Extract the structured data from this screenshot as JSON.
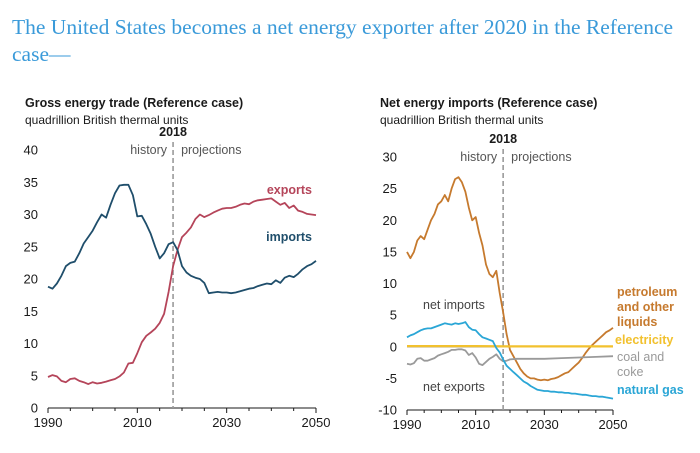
{
  "headline": "The United States becomes a net energy exporter after 2020 in the Reference case—",
  "chart_data": [
    {
      "type": "line",
      "title": "Gross energy trade (Reference case)",
      "subtitle": "quadrillion British thermal units",
      "xlim": [
        1990,
        2050
      ],
      "ylim": [
        0,
        40
      ],
      "xticks": [
        1990,
        2010,
        2030,
        2050
      ],
      "yticks": [
        0,
        5,
        10,
        15,
        20,
        25,
        30,
        35,
        40
      ],
      "divider": {
        "x": 2018,
        "label": "2018",
        "left_label": "history",
        "right_label": "projections"
      },
      "series": [
        {
          "name": "exports",
          "color": "#b5455a",
          "x": [
            1990,
            1991,
            1992,
            1993,
            1994,
            1995,
            1996,
            1997,
            1998,
            1999,
            2000,
            2001,
            2002,
            2003,
            2004,
            2005,
            2006,
            2007,
            2008,
            2009,
            2010,
            2011,
            2012,
            2013,
            2014,
            2015,
            2016,
            2017,
            2018,
            2019,
            2020,
            2021,
            2022,
            2023,
            2024,
            2025,
            2026,
            2027,
            2028,
            2029,
            2030,
            2031,
            2032,
            2033,
            2034,
            2035,
            2036,
            2037,
            2038,
            2039,
            2040,
            2041,
            2042,
            2043,
            2044,
            2045,
            2046,
            2047,
            2048,
            2049,
            2050
          ],
          "y": [
            4.8,
            5.1,
            4.9,
            4.2,
            4.0,
            4.5,
            4.6,
            4.2,
            4.0,
            3.7,
            4.0,
            3.8,
            3.9,
            4.1,
            4.3,
            4.5,
            4.9,
            5.5,
            6.9,
            7.0,
            8.5,
            10.2,
            11.2,
            11.7,
            12.3,
            13.2,
            14.6,
            18.0,
            22.0,
            24.5,
            26.5,
            27.2,
            28.0,
            29.3,
            30.0,
            29.6,
            29.9,
            30.3,
            30.6,
            30.9,
            31.0,
            31.0,
            31.2,
            31.5,
            31.7,
            31.6,
            32.0,
            32.2,
            32.3,
            32.4,
            32.5,
            32.0,
            31.5,
            31.8,
            31.0,
            31.4,
            30.6,
            30.4,
            30.1,
            30.0,
            29.9
          ]
        },
        {
          "name": "imports",
          "color": "#1f4e6b",
          "x": [
            1990,
            1991,
            1992,
            1993,
            1994,
            1995,
            1996,
            1997,
            1998,
            1999,
            2000,
            2001,
            2002,
            2003,
            2004,
            2005,
            2006,
            2007,
            2008,
            2009,
            2010,
            2011,
            2012,
            2013,
            2014,
            2015,
            2016,
            2017,
            2018,
            2019,
            2020,
            2021,
            2022,
            2023,
            2024,
            2025,
            2026,
            2027,
            2028,
            2029,
            2030,
            2031,
            2032,
            2033,
            2034,
            2035,
            2036,
            2037,
            2038,
            2039,
            2040,
            2041,
            2042,
            2043,
            2044,
            2045,
            2046,
            2047,
            2048,
            2049,
            2050
          ],
          "y": [
            18.8,
            18.5,
            19.3,
            20.5,
            22.0,
            22.5,
            22.7,
            24.0,
            25.5,
            26.5,
            27.5,
            28.8,
            30.0,
            29.5,
            31.5,
            33.3,
            34.5,
            34.6,
            34.6,
            33.0,
            29.7,
            29.8,
            28.5,
            27.0,
            25.0,
            23.2,
            24.0,
            25.4,
            25.7,
            24.5,
            22.0,
            21.0,
            20.5,
            20.2,
            20.0,
            19.4,
            17.8,
            17.9,
            18.0,
            17.9,
            17.9,
            17.8,
            17.9,
            18.1,
            18.3,
            18.5,
            18.6,
            18.9,
            19.1,
            19.3,
            19.2,
            19.8,
            19.4,
            20.2,
            20.5,
            20.3,
            20.8,
            21.5,
            22.0,
            22.3,
            22.8
          ]
        }
      ]
    },
    {
      "type": "line",
      "title": "Net energy imports (Reference case)",
      "subtitle": "quadrillion British thermal units",
      "xlim": [
        1990,
        2050
      ],
      "ylim": [
        -10,
        30
      ],
      "xticks": [
        1990,
        2010,
        2030,
        2050
      ],
      "yticks": [
        -10,
        -5,
        0,
        5,
        10,
        15,
        20,
        25,
        30
      ],
      "divider": {
        "x": 2018,
        "label": "2018",
        "left_label": "history",
        "right_label": "projections"
      },
      "annotations": [
        "net imports",
        "net exports"
      ],
      "series": [
        {
          "name": "petroleum and other liquids",
          "color": "#c67a2e",
          "x": [
            1990,
            1991,
            1992,
            1993,
            1994,
            1995,
            1996,
            1997,
            1998,
            1999,
            2000,
            2001,
            2002,
            2003,
            2004,
            2005,
            2006,
            2007,
            2008,
            2009,
            2010,
            2011,
            2012,
            2013,
            2014,
            2015,
            2016,
            2017,
            2018,
            2019,
            2020,
            2021,
            2022,
            2023,
            2024,
            2025,
            2026,
            2027,
            2028,
            2029,
            2030,
            2031,
            2032,
            2033,
            2034,
            2035,
            2036,
            2037,
            2038,
            2039,
            2040,
            2041,
            2042,
            2043,
            2044,
            2045,
            2046,
            2047,
            2048,
            2049,
            2050
          ],
          "y": [
            15.0,
            14.0,
            15.0,
            16.8,
            17.5,
            17.0,
            18.5,
            20.0,
            21.0,
            22.5,
            23.0,
            24.0,
            23.0,
            25.0,
            26.5,
            26.8,
            26.0,
            24.5,
            22.0,
            20.0,
            20.5,
            18.0,
            16.0,
            13.0,
            11.5,
            11.0,
            12.0,
            8.5,
            5.5,
            2.0,
            -0.5,
            -1.5,
            -2.5,
            -3.5,
            -4.2,
            -4.7,
            -5.0,
            -5.0,
            -5.2,
            -5.3,
            -5.2,
            -5.3,
            -5.1,
            -5.0,
            -4.8,
            -4.5,
            -4.2,
            -4.0,
            -3.5,
            -3.0,
            -2.5,
            -1.8,
            -1.0,
            -0.3,
            0.3,
            0.8,
            1.3,
            1.8,
            2.3,
            2.6,
            3.0
          ]
        },
        {
          "name": "electricity",
          "color": "#f2c12e",
          "x": [
            1990,
            2000,
            2010,
            2020,
            2030,
            2040,
            2050
          ],
          "y": [
            0.1,
            0.1,
            0.1,
            0.05,
            0.05,
            0.05,
            0.05
          ]
        },
        {
          "name": "coal and coke",
          "color": "#9a9a9a",
          "x": [
            1990,
            1991,
            1992,
            1993,
            1994,
            1995,
            1996,
            1997,
            1998,
            1999,
            2000,
            2001,
            2002,
            2003,
            2004,
            2005,
            2006,
            2007,
            2008,
            2009,
            2010,
            2011,
            2012,
            2013,
            2014,
            2015,
            2016,
            2017,
            2018,
            2019,
            2020,
            2022,
            2025,
            2030,
            2035,
            2040,
            2045,
            2050
          ],
          "y": [
            -2.7,
            -2.8,
            -2.6,
            -1.9,
            -1.8,
            -2.2,
            -2.2,
            -2.0,
            -1.8,
            -1.4,
            -1.2,
            -1.0,
            -0.8,
            -0.5,
            -0.5,
            -0.4,
            -0.4,
            -0.6,
            -1.3,
            -1.0,
            -1.7,
            -2.7,
            -2.9,
            -2.4,
            -1.9,
            -1.6,
            -1.2,
            -1.9,
            -2.3,
            -2.2,
            -2.0,
            -1.9,
            -1.9,
            -1.9,
            -1.8,
            -1.7,
            -1.6,
            -1.5
          ]
        },
        {
          "name": "natural gas",
          "color": "#2aa6d6",
          "x": [
            1990,
            1991,
            1992,
            1993,
            1994,
            1995,
            1996,
            1997,
            1998,
            1999,
            2000,
            2001,
            2002,
            2003,
            2004,
            2005,
            2006,
            2007,
            2008,
            2009,
            2010,
            2011,
            2012,
            2013,
            2014,
            2015,
            2016,
            2017,
            2018,
            2019,
            2020,
            2021,
            2022,
            2023,
            2024,
            2025,
            2026,
            2027,
            2028,
            2029,
            2030,
            2031,
            2032,
            2033,
            2034,
            2035,
            2036,
            2037,
            2038,
            2039,
            2040,
            2041,
            2042,
            2043,
            2044,
            2045,
            2046,
            2047,
            2048,
            2049,
            2050
          ],
          "y": [
            1.5,
            1.8,
            2.0,
            2.3,
            2.6,
            2.8,
            2.9,
            2.9,
            3.1,
            3.3,
            3.5,
            3.7,
            3.6,
            3.5,
            3.7,
            3.6,
            3.7,
            3.9,
            3.1,
            2.7,
            2.6,
            2.0,
            1.5,
            1.3,
            1.1,
            0.9,
            -0.2,
            -0.9,
            -2.0,
            -3.0,
            -3.5,
            -4.0,
            -4.5,
            -5.0,
            -5.5,
            -5.8,
            -6.2,
            -6.5,
            -6.8,
            -6.9,
            -7.0,
            -7.0,
            -7.1,
            -7.1,
            -7.2,
            -7.2,
            -7.3,
            -7.3,
            -7.4,
            -7.4,
            -7.5,
            -7.6,
            -7.6,
            -7.7,
            -7.8,
            -7.8,
            -7.9,
            -7.9,
            -8.0,
            -8.1,
            -8.2
          ]
        }
      ]
    }
  ]
}
